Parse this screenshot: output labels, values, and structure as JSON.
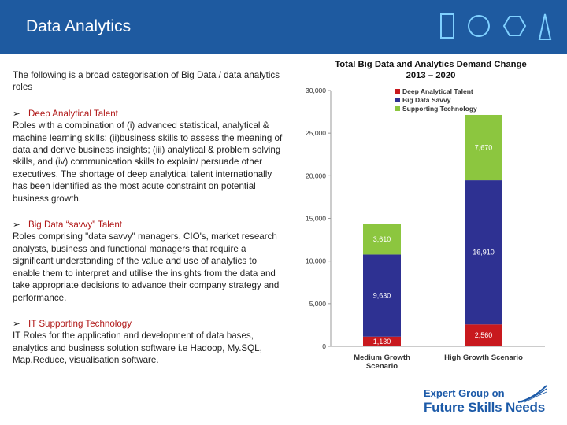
{
  "header": {
    "title": "Data Analytics",
    "colors": {
      "background": "#1e5aa0",
      "icon_stroke": "#7fd0ff"
    }
  },
  "left": {
    "intro": "The following is a broad categorisation of Big Data / data analytics roles",
    "sections": [
      {
        "heading": "Deep Analytical Talent",
        "body": "Roles with a combination of (i) advanced statistical, analytical & machine learning skills; (ii)business skills to assess the meaning of data and derive business insights; (iii) analytical & problem solving skills, and (iv) communication skills to explain/ persuade other executives. The shortage of deep analytical talent internationally has been identified as the most acute constraint on potential business growth."
      },
      {
        "heading": "Big Data “savvy” Talent",
        "body": "Roles comprising \"data savvy\" managers, CIO's, market research analysts, business and functional managers that require a significant understanding of the value and use of analytics to enable them to interpret and utilise the insights from the data and take appropriate decisions to advance their company strategy and performance."
      },
      {
        "heading": "IT Supporting Technology",
        "body": "IT Roles for the application and development of data bases, analytics and business solution software i.e Hadoop, My.SQL, Map.Reduce, visualisation software."
      }
    ],
    "bullet_icon": "arrow-bullet-icon"
  },
  "chart_data": {
    "type": "bar",
    "stacked": true,
    "title": "Total Big Data and Analytics Demand Change 2013 – 2020",
    "categories": [
      "Medium Growth Scenario",
      "High Growth Scenario"
    ],
    "category_lines": [
      [
        "Medium Growth",
        "Scenario"
      ],
      [
        "High Growth Scenario"
      ]
    ],
    "series": [
      {
        "name": "Deep Analytical Talent",
        "color": "#c8191e",
        "values": [
          1130,
          2560
        ],
        "labels": [
          "1,130",
          "2,560"
        ]
      },
      {
        "name": "Big Data Savvy",
        "color": "#2e3192",
        "values": [
          9630,
          16910
        ],
        "labels": [
          "9,630",
          "16,910"
        ]
      },
      {
        "name": "Supporting Technology",
        "color": "#8cc63f",
        "values": [
          3610,
          7670
        ],
        "labels": [
          "3,610",
          "7,670"
        ]
      }
    ],
    "ylim": [
      0,
      30000
    ],
    "yticks": [
      0,
      5000,
      10000,
      15000,
      20000,
      25000,
      30000
    ],
    "ytick_labels": [
      "0",
      "5,000",
      "10,000",
      "15,000",
      "20,000",
      "25,000",
      "30,000"
    ],
    "legend_position": "top-right",
    "grid": false
  },
  "logo": {
    "line1": "Expert Group on",
    "line2": "Future Skills Needs",
    "color": "#1c5aa8"
  }
}
